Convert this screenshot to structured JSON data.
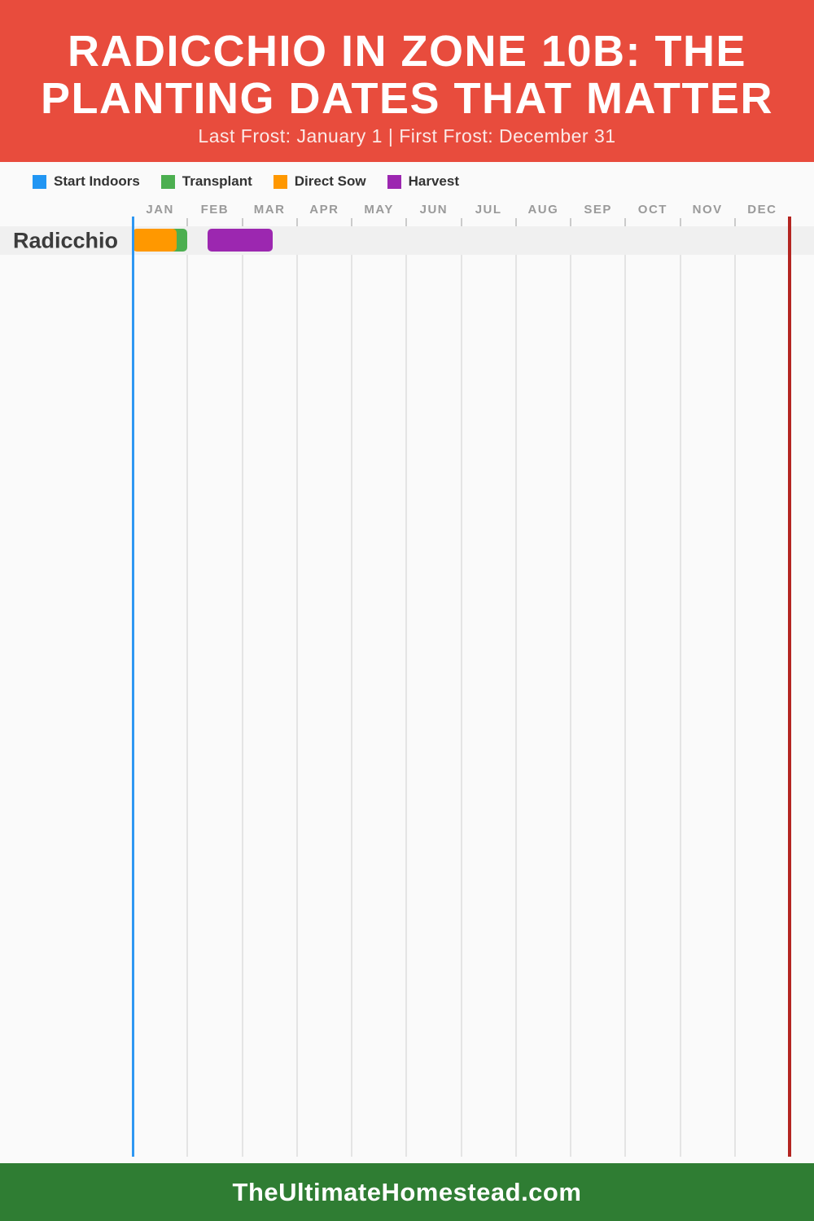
{
  "header": {
    "title_line1": "RADICCHIO IN ZONE 10B: THE",
    "title_line2": "PLANTING DATES THAT MATTER",
    "subtitle": "Last Frost: January 1 | First Frost: December 31",
    "background_color": "#E84C3D"
  },
  "legend": {
    "items": [
      {
        "label": "Start Indoors",
        "color": "#2196F3"
      },
      {
        "label": "Transplant",
        "color": "#4CAF50"
      },
      {
        "label": "Direct Sow",
        "color": "#FF9800"
      },
      {
        "label": "Harvest",
        "color": "#9C27B0"
      }
    ]
  },
  "chart_data": {
    "type": "timeline-gantt",
    "title": "Radicchio planting calendar, Zone 10B",
    "months": [
      "JAN",
      "FEB",
      "MAR",
      "APR",
      "MAY",
      "JUN",
      "JUL",
      "AUG",
      "SEP",
      "OCT",
      "NOV",
      "DEC"
    ],
    "x_axis": {
      "unit": "month",
      "range": [
        0,
        12
      ],
      "grid": true
    },
    "rows": [
      {
        "label": "Radicchio",
        "bars": [
          {
            "type": "transplant",
            "legend": "Transplant",
            "color": "#4CAF50",
            "start_month": 0.62,
            "end_month": 1.0
          },
          {
            "type": "direct-sow",
            "legend": "Direct Sow",
            "color": "#FF9800",
            "start_month": 0.0,
            "end_month": 0.8
          },
          {
            "type": "harvest",
            "legend": "Harvest",
            "color": "#9C27B0",
            "start_month": 1.37,
            "end_month": 2.56
          }
        ]
      }
    ],
    "frost_lines": [
      {
        "name": "last-frost-line",
        "label": "Last Frost: January 1",
        "month": 0,
        "color": "#2E97F2"
      },
      {
        "name": "first-frost-line",
        "label": "First Frost: December 31",
        "month": 12,
        "color": "#B42521"
      }
    ]
  },
  "footer": {
    "text": "TheUltimateHomestead.com",
    "background_color": "#2F7D33"
  }
}
